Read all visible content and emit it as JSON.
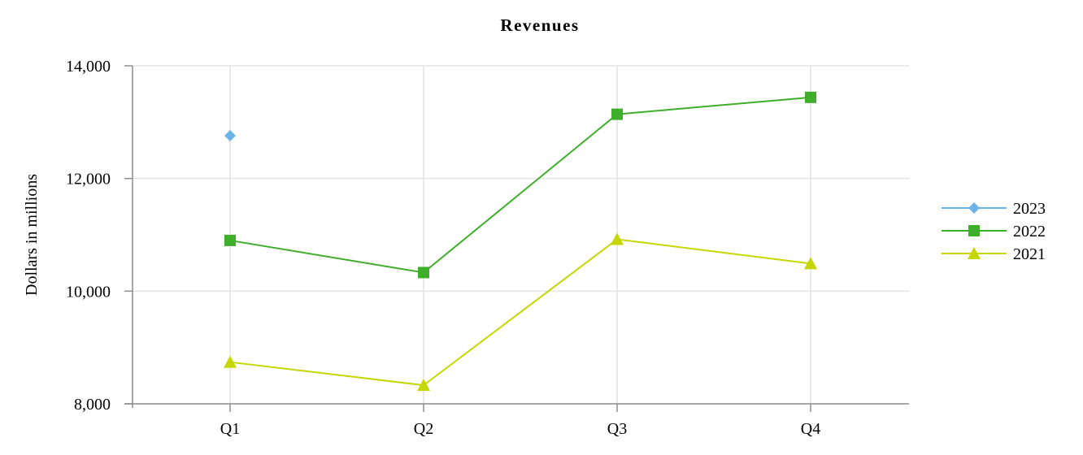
{
  "chart_data": {
    "type": "line",
    "title": "Revenues",
    "xlabel": "",
    "ylabel": "Dollars in millions",
    "categories": [
      "Q1",
      "Q2",
      "Q3",
      "Q4"
    ],
    "y_ticks": [
      8000,
      10000,
      12000,
      14000
    ],
    "y_tick_labels": [
      "8,000",
      "10,000",
      "12,000",
      "14,000"
    ],
    "ylim": [
      8000,
      14000
    ],
    "grid": true,
    "legend_position": "right",
    "series": [
      {
        "name": "2023",
        "color": "#6AB4E6",
        "marker": "diamond",
        "values": [
          12760,
          null,
          null,
          null
        ]
      },
      {
        "name": "2022",
        "color": "#3FAE2A",
        "marker": "square",
        "values": [
          10900,
          10330,
          13140,
          13440
        ]
      },
      {
        "name": "2021",
        "color": "#C5D600",
        "marker": "triangle",
        "values": [
          8740,
          8330,
          10920,
          10490
        ]
      }
    ]
  },
  "colors": {
    "grid": "#E4E4E4",
    "axis": "#8C8C8C"
  }
}
